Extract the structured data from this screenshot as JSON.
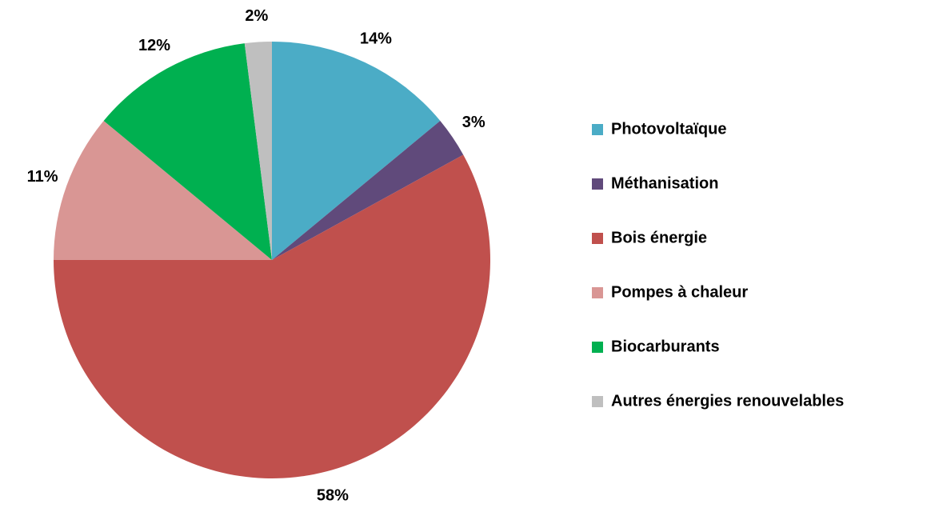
{
  "chart_data": {
    "type": "pie",
    "categories": [
      "Photovoltaïque",
      "Méthanisation",
      "Bois énergie",
      "Pompes à chaleur",
      "Biocarburants",
      "Autres énergies renouvelables"
    ],
    "values": [
      14,
      3,
      58,
      11,
      12,
      2
    ],
    "value_labels": [
      "14%",
      "3%",
      "58%",
      "11%",
      "12%",
      "2%"
    ],
    "colors": [
      "#4bacc6",
      "#604a7b",
      "#c0504d",
      "#d99694",
      "#00b050",
      "#bfbfbf"
    ],
    "legend": "right"
  }
}
